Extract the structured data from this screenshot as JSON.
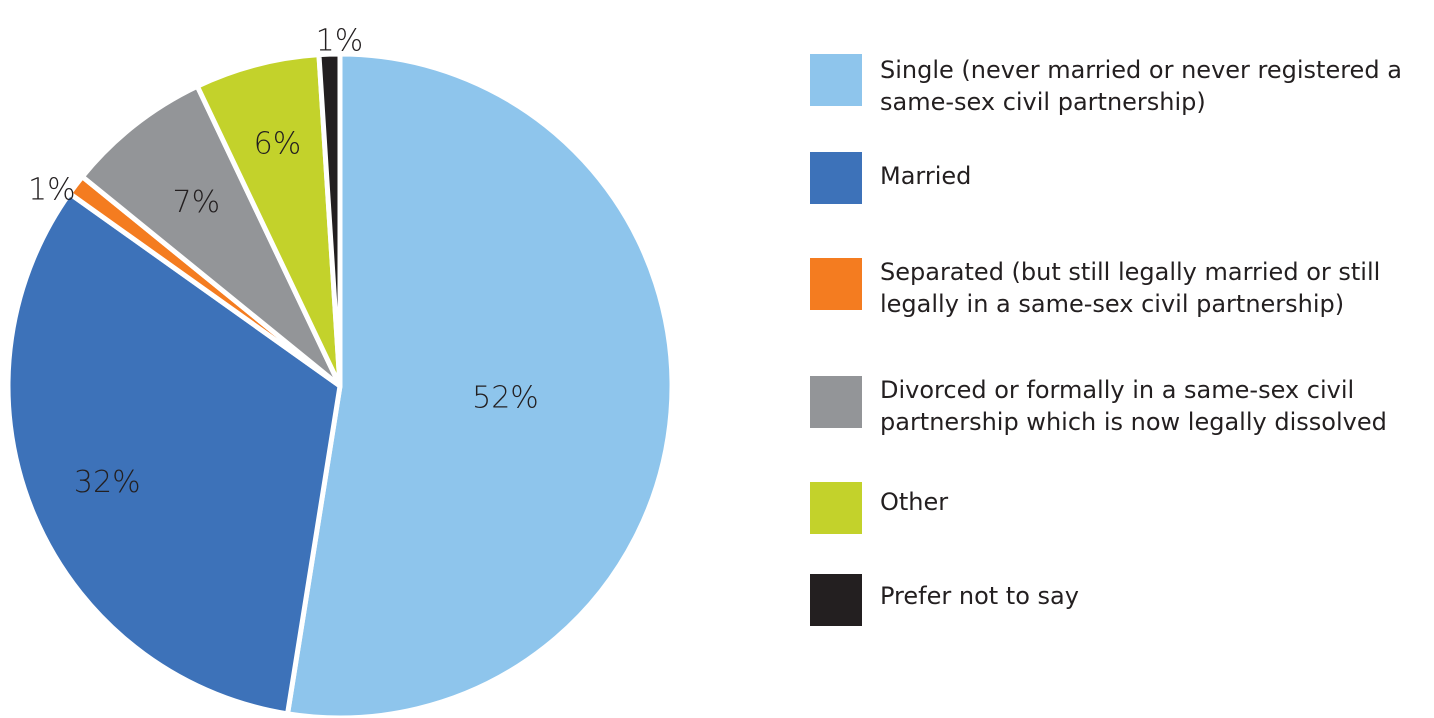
{
  "chart_data": {
    "type": "pie",
    "title": "",
    "legend_position": "right",
    "start_angle_deg": 0,
    "direction": "clockwise",
    "slices": [
      {
        "name": "Single (never married or never registered a same-sex civil partnership)",
        "value": 52,
        "label": "52%",
        "color": "#8ec5ec"
      },
      {
        "name": "Married",
        "value": 32,
        "label": "32%",
        "color": "#3d72b9"
      },
      {
        "name": "Separated (but still legally married or still legally in a same-sex civil partnership)",
        "value": 1,
        "label": "1%",
        "color": "#f47c20"
      },
      {
        "name": "Divorced or formally in a same-sex civil partnership which is now legally dissolved",
        "value": 7,
        "label": "7%",
        "color": "#939598"
      },
      {
        "name": "Other",
        "value": 6,
        "label": "6%",
        "color": "#c3d22b"
      },
      {
        "name": "Prefer not to say",
        "value": 1,
        "label": "1%",
        "color": "#231f20"
      }
    ]
  }
}
